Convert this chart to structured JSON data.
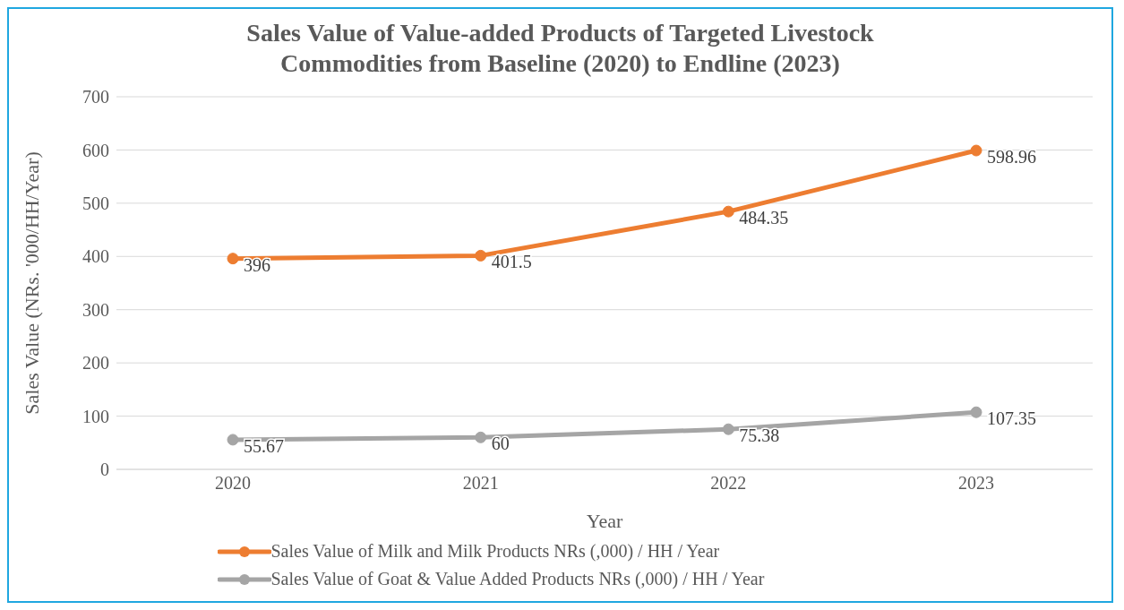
{
  "chart_data": {
    "type": "line",
    "title": "Sales Value of Value-added Products of Targeted Livestock Commodities from Baseline (2020) to Endline (2023)",
    "xlabel": "Year",
    "ylabel": "Sales Value (NRs. '000/HH/Year)",
    "categories": [
      "2020",
      "2021",
      "2022",
      "2023"
    ],
    "series": [
      {
        "name": "Sales Value of Milk and Milk Products NRs (,000) / HH / Year",
        "color": "#ed7d31",
        "values": [
          396,
          401.5,
          484.35,
          598.96
        ]
      },
      {
        "name": "Sales Value of Goat & Value Added Products NRs (,000) / HH / Year",
        "color": "#a5a5a5",
        "values": [
          55.67,
          60,
          75.38,
          107.35
        ]
      }
    ],
    "ylim": [
      0,
      700
    ],
    "yticks": [
      0,
      100,
      200,
      300,
      400,
      500,
      600,
      700
    ],
    "grid": "y",
    "legend": "bottom",
    "marker": "circle",
    "line_style": "solid",
    "data_labels": true
  }
}
